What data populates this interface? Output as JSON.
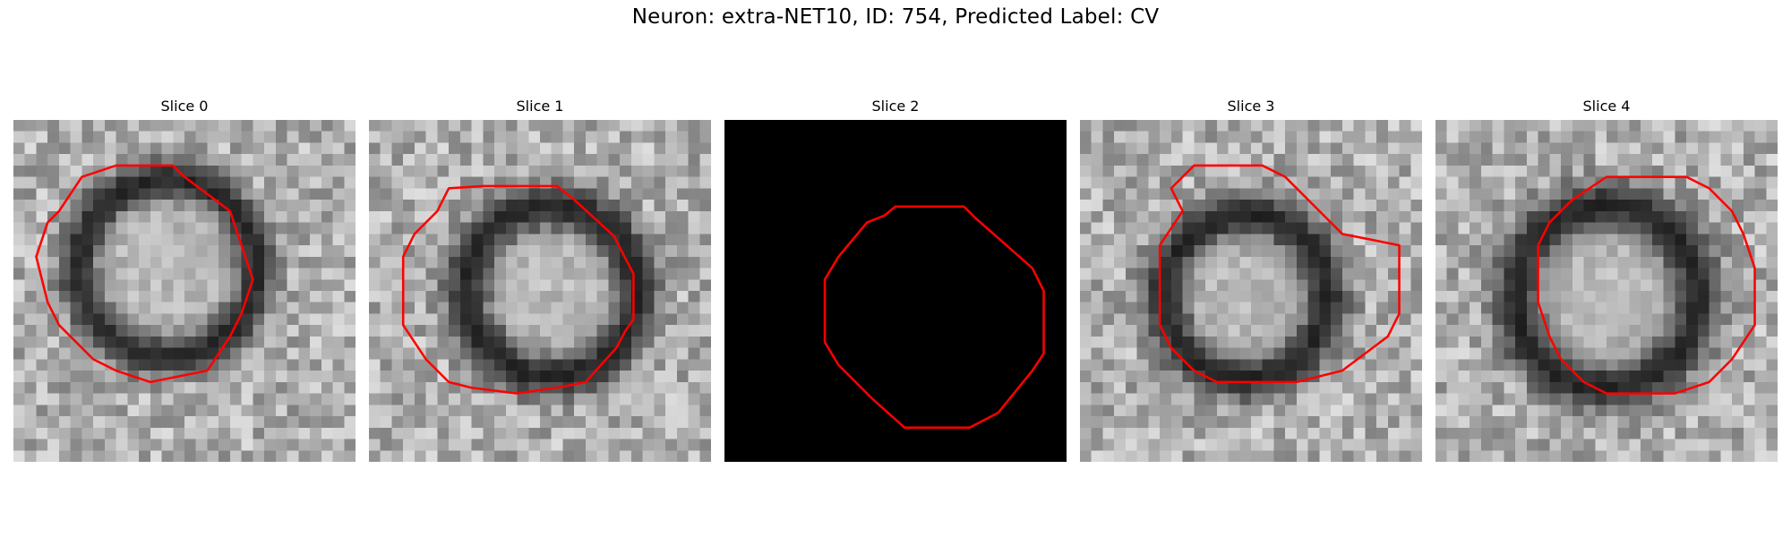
{
  "figure": {
    "title": "Neuron: extra-NET10, ID: 754, Predicted Label: CV",
    "contour_color": "#ff0000",
    "slices": [
      {
        "title": "Slice 0",
        "blank": false
      },
      {
        "title": "Slice 1",
        "blank": false
      },
      {
        "title": "Slice 2",
        "blank": true
      },
      {
        "title": "Slice 3",
        "blank": false
      },
      {
        "title": "Slice 4",
        "blank": false
      }
    ]
  }
}
